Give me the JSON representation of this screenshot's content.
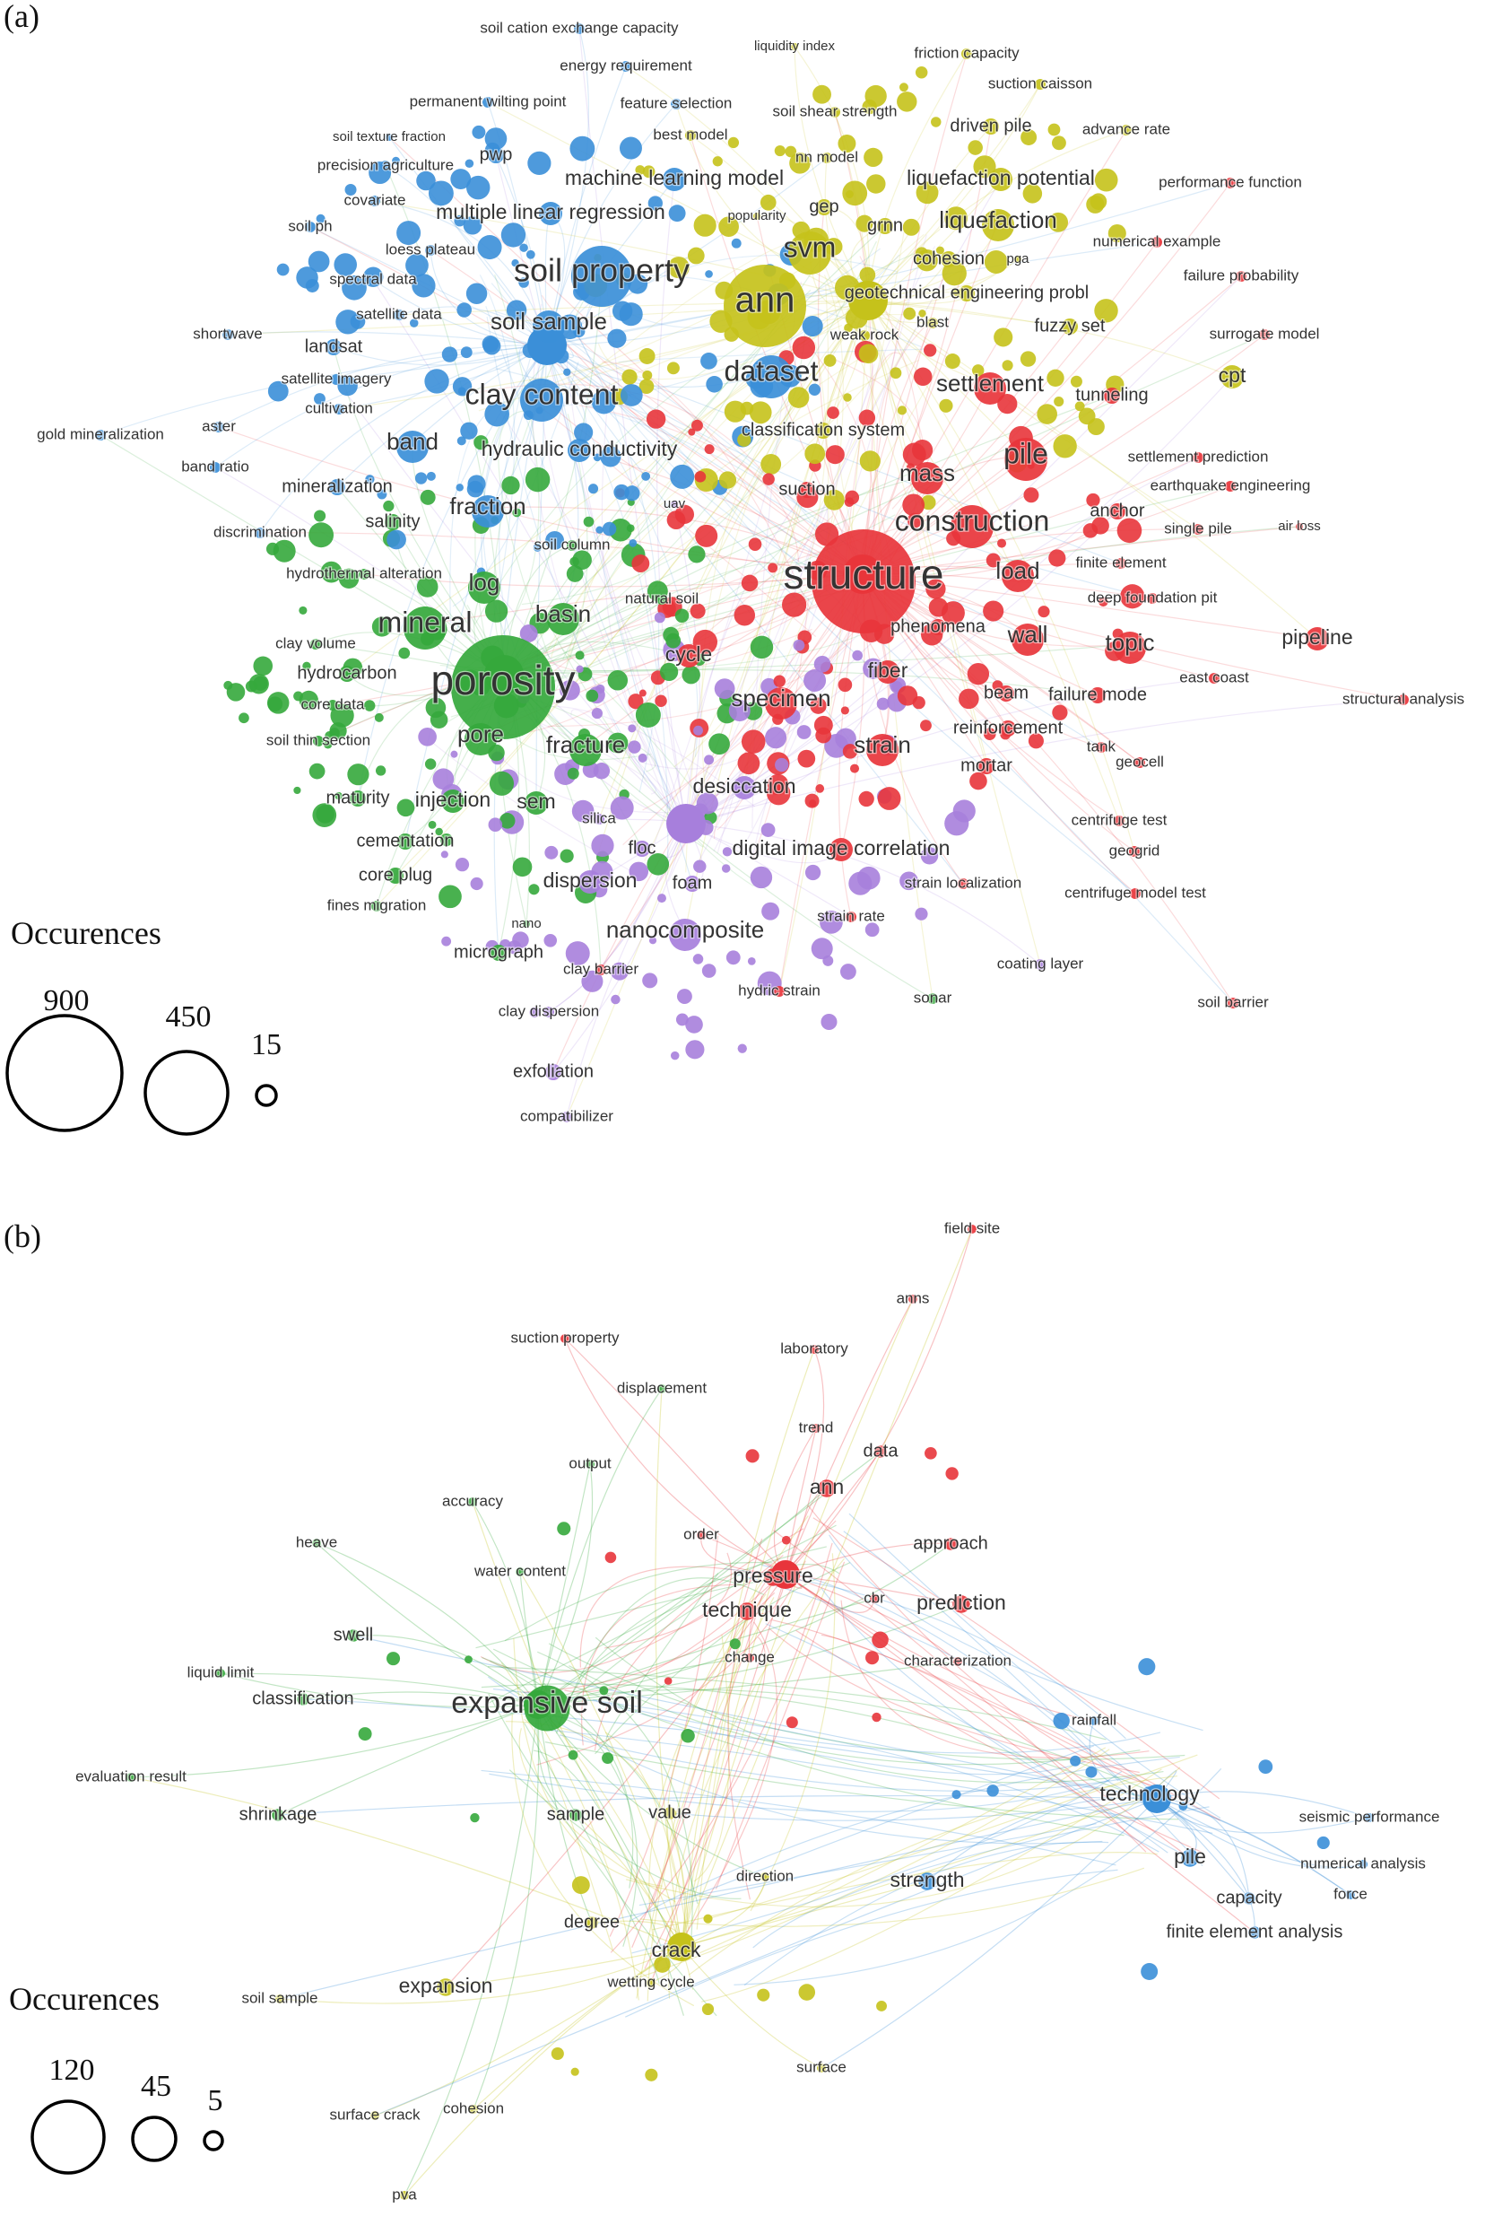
{
  "colors": {
    "red": "#e8353b",
    "green": "#35a83c",
    "blue": "#3b8fd8",
    "yellow": "#c5c21b",
    "purple": "#a77fdc",
    "cyan": "#3bc1d2",
    "orange": "#f0953a",
    "pink": "#e47ad8"
  },
  "panels": [
    {
      "id": "a",
      "letter": "(a)",
      "legend": {
        "title": "Occurences",
        "sizes": [
          "900",
          "450",
          "15"
        ]
      },
      "nodes": [
        {
          "t": "soil cation exchange capacity",
          "c": "blue",
          "s": 2
        },
        {
          "t": "energy requirement",
          "c": "blue",
          "s": 2
        },
        {
          "t": "liquidity index",
          "c": "yellow",
          "s": 1
        },
        {
          "t": "friction capacity",
          "c": "yellow",
          "s": 2
        },
        {
          "t": "suction caisson",
          "c": "yellow",
          "s": 2
        },
        {
          "t": "permanent wilting point",
          "c": "blue",
          "s": 2
        },
        {
          "t": "feature selection",
          "c": "blue",
          "s": 2
        },
        {
          "t": "soil shear strength",
          "c": "yellow",
          "s": 2
        },
        {
          "t": "driven pile",
          "c": "yellow",
          "s": 3
        },
        {
          "t": "advance rate",
          "c": "yellow",
          "s": 2
        },
        {
          "t": "soil texture fraction",
          "c": "blue",
          "s": 1
        },
        {
          "t": "pwp",
          "c": "blue",
          "s": 3
        },
        {
          "t": "best model",
          "c": "yellow",
          "s": 2
        },
        {
          "t": "nn model",
          "c": "yellow",
          "s": 2
        },
        {
          "t": "precision agriculture",
          "c": "blue",
          "s": 2
        },
        {
          "t": "machine learning model",
          "c": "blue",
          "s": 4
        },
        {
          "t": "liquefaction potential",
          "c": "yellow",
          "s": 4
        },
        {
          "t": "performance function",
          "c": "red",
          "s": 2
        },
        {
          "t": "covariate",
          "c": "blue",
          "s": 2
        },
        {
          "t": "multiple linear regression",
          "c": "blue",
          "s": 4
        },
        {
          "t": "popularity",
          "c": "yellow",
          "s": 1
        },
        {
          "t": "gep",
          "c": "yellow",
          "s": 3
        },
        {
          "t": "grnn",
          "c": "yellow",
          "s": 3
        },
        {
          "t": "liquefaction",
          "c": "yellow",
          "s": 5
        },
        {
          "t": "soil ph",
          "c": "blue",
          "s": 2
        },
        {
          "t": "loess plateau",
          "c": "blue",
          "s": 2
        },
        {
          "t": "svm",
          "c": "yellow",
          "s": 6
        },
        {
          "t": "cohesion",
          "c": "yellow",
          "s": 3
        },
        {
          "t": "pga",
          "c": "yellow",
          "s": 1
        },
        {
          "t": "numerical example",
          "c": "red",
          "s": 2
        },
        {
          "t": "soil property",
          "c": "blue",
          "s": 7
        },
        {
          "t": "spectral data",
          "c": "blue",
          "s": 2
        },
        {
          "t": "failure probability",
          "c": "red",
          "s": 2
        },
        {
          "t": "ann",
          "c": "yellow",
          "s": 8
        },
        {
          "t": "geotechnical engineering probl",
          "c": "yellow",
          "s": 3
        },
        {
          "t": "satellite data",
          "c": "blue",
          "s": 2
        },
        {
          "t": "soil sample",
          "c": "blue",
          "s": 5
        },
        {
          "t": "blast",
          "c": "yellow",
          "s": 2
        },
        {
          "t": "fuzzy set",
          "c": "yellow",
          "s": 3
        },
        {
          "t": "shortwave",
          "c": "blue",
          "s": 2
        },
        {
          "t": "weak rock",
          "c": "yellow",
          "s": 2
        },
        {
          "t": "surrogate model",
          "c": "red",
          "s": 2
        },
        {
          "t": "landsat",
          "c": "blue",
          "s": 3
        },
        {
          "t": "dataset",
          "c": "blue",
          "s": 6
        },
        {
          "t": "satellite imagery",
          "c": "blue",
          "s": 2
        },
        {
          "t": "settlement",
          "c": "red",
          "s": 5
        },
        {
          "t": "cpt",
          "c": "yellow",
          "s": 4
        },
        {
          "t": "clay content",
          "c": "blue",
          "s": 6
        },
        {
          "t": "tunneling",
          "c": "red",
          "s": 3
        },
        {
          "t": "cultivation",
          "c": "blue",
          "s": 2
        },
        {
          "t": "aster",
          "c": "blue",
          "s": 2
        },
        {
          "t": "gold mineralization",
          "c": "blue",
          "s": 2
        },
        {
          "t": "classification system",
          "c": "yellow",
          "s": 3
        },
        {
          "t": "band",
          "c": "blue",
          "s": 5
        },
        {
          "t": "hydraulic conductivity",
          "c": "blue",
          "s": 4
        },
        {
          "t": "band ratio",
          "c": "blue",
          "s": 2
        },
        {
          "t": "pile",
          "c": "red",
          "s": 6
        },
        {
          "t": "settlement prediction",
          "c": "red",
          "s": 2
        },
        {
          "t": "mass",
          "c": "red",
          "s": 5
        },
        {
          "t": "mineralization",
          "c": "blue",
          "s": 3
        },
        {
          "t": "earthquake engineering",
          "c": "red",
          "s": 2
        },
        {
          "t": "suction",
          "c": "red",
          "s": 3
        },
        {
          "t": "fraction",
          "c": "blue",
          "s": 5
        },
        {
          "t": "anchor",
          "c": "red",
          "s": 3
        },
        {
          "t": "uav",
          "c": "purple",
          "s": 1
        },
        {
          "t": "construction",
          "c": "red",
          "s": 6
        },
        {
          "t": "salinity",
          "c": "green",
          "s": 3
        },
        {
          "t": "single pile",
          "c": "red",
          "s": 2
        },
        {
          "t": "air loss",
          "c": "red",
          "s": 1
        },
        {
          "t": "discrimination",
          "c": "blue",
          "s": 2
        },
        {
          "t": "soil column",
          "c": "green",
          "s": 2
        },
        {
          "t": "finite element",
          "c": "red",
          "s": 2
        },
        {
          "t": "hydrothermal alteration",
          "c": "green",
          "s": 2
        },
        {
          "t": "structure",
          "c": "red",
          "s": 9
        },
        {
          "t": "load",
          "c": "red",
          "s": 5
        },
        {
          "t": "log",
          "c": "green",
          "s": 5
        },
        {
          "t": "deep foundation pit",
          "c": "red",
          "s": 2
        },
        {
          "t": "natural soil",
          "c": "green",
          "s": 2
        },
        {
          "t": "mineral",
          "c": "green",
          "s": 6
        },
        {
          "t": "basin",
          "c": "green",
          "s": 5
        },
        {
          "t": "phenomena",
          "c": "red",
          "s": 3
        },
        {
          "t": "wall",
          "c": "red",
          "s": 5
        },
        {
          "t": "pipeline",
          "c": "red",
          "s": 4
        },
        {
          "t": "clay volume",
          "c": "green",
          "s": 2
        },
        {
          "t": "topic",
          "c": "red",
          "s": 5
        },
        {
          "t": "hydrocarbon",
          "c": "green",
          "s": 3
        },
        {
          "t": "cycle",
          "c": "red",
          "s": 4
        },
        {
          "t": "porosity",
          "c": "green",
          "s": 9
        },
        {
          "t": "fiber",
          "c": "red",
          "s": 4
        },
        {
          "t": "east coast",
          "c": "red",
          "s": 2
        },
        {
          "t": "beam",
          "c": "red",
          "s": 3
        },
        {
          "t": "failure mode",
          "c": "red",
          "s": 3
        },
        {
          "t": "structural analysis",
          "c": "red",
          "s": 2
        },
        {
          "t": "core data",
          "c": "green",
          "s": 2
        },
        {
          "t": "specimen",
          "c": "red",
          "s": 5
        },
        {
          "t": "soil thin section",
          "c": "green",
          "s": 2
        },
        {
          "t": "pore",
          "c": "green",
          "s": 5
        },
        {
          "t": "fracture",
          "c": "green",
          "s": 5
        },
        {
          "t": "reinforcement",
          "c": "red",
          "s": 3
        },
        {
          "t": "strain",
          "c": "red",
          "s": 5
        },
        {
          "t": "tank",
          "c": "red",
          "s": 2
        },
        {
          "t": "mortar",
          "c": "red",
          "s": 3
        },
        {
          "t": "geocell",
          "c": "red",
          "s": 2
        },
        {
          "t": "desiccation",
          "c": "purple",
          "s": 4
        },
        {
          "t": "maturity",
          "c": "green",
          "s": 3
        },
        {
          "t": "injection",
          "c": "green",
          "s": 4
        },
        {
          "t": "sem",
          "c": "green",
          "s": 4
        },
        {
          "t": "silica",
          "c": "purple",
          "s": 2
        },
        {
          "t": "centrifuge test",
          "c": "red",
          "s": 2
        },
        {
          "t": "cementation",
          "c": "green",
          "s": 3
        },
        {
          "t": "floc",
          "c": "purple",
          "s": 3
        },
        {
          "t": "digital image correlation",
          "c": "red",
          "s": 4
        },
        {
          "t": "geogrid",
          "c": "red",
          "s": 2
        },
        {
          "t": "core plug",
          "c": "green",
          "s": 3
        },
        {
          "t": "dispersion",
          "c": "purple",
          "s": 4
        },
        {
          "t": "foam",
          "c": "purple",
          "s": 3
        },
        {
          "t": "strain localization",
          "c": "red",
          "s": 2
        },
        {
          "t": "centrifuge model test",
          "c": "red",
          "s": 2
        },
        {
          "t": "fines migration",
          "c": "green",
          "s": 2
        },
        {
          "t": "nano",
          "c": "green",
          "s": 1
        },
        {
          "t": "nanocomposite",
          "c": "purple",
          "s": 5
        },
        {
          "t": "strain rate",
          "c": "red",
          "s": 2
        },
        {
          "t": "micrograph",
          "c": "green",
          "s": 3
        },
        {
          "t": "coating layer",
          "c": "purple",
          "s": 2
        },
        {
          "t": "clay barrier",
          "c": "red",
          "s": 2
        },
        {
          "t": "hydric strain",
          "c": "red",
          "s": 2
        },
        {
          "t": "soil barrier",
          "c": "red",
          "s": 2
        },
        {
          "t": "clay dispersion",
          "c": "purple",
          "s": 2
        },
        {
          "t": "sonar",
          "c": "green",
          "s": 2
        },
        {
          "t": "exfoliation",
          "c": "purple",
          "s": 3
        },
        {
          "t": "compatibilizer",
          "c": "purple",
          "s": 2
        }
      ]
    },
    {
      "id": "b",
      "letter": "(b)",
      "legend": {
        "title": "Occurences",
        "sizes": [
          "120",
          "45",
          "5"
        ]
      },
      "nodes": [
        {
          "t": "field site",
          "c": "red",
          "s": 2
        },
        {
          "t": "anns",
          "c": "red",
          "s": 2
        },
        {
          "t": "suction property",
          "c": "red",
          "s": 2
        },
        {
          "t": "laboratory",
          "c": "red",
          "s": 2
        },
        {
          "t": "displacement",
          "c": "green",
          "s": 2
        },
        {
          "t": "trend",
          "c": "red",
          "s": 2
        },
        {
          "t": "data",
          "c": "red",
          "s": 3
        },
        {
          "t": "output",
          "c": "green",
          "s": 2
        },
        {
          "t": "ann",
          "c": "red",
          "s": 4
        },
        {
          "t": "accuracy",
          "c": "green",
          "s": 2
        },
        {
          "t": "order",
          "c": "red",
          "s": 2
        },
        {
          "t": "approach",
          "c": "red",
          "s": 3
        },
        {
          "t": "heave",
          "c": "green",
          "s": 2
        },
        {
          "t": "water content",
          "c": "green",
          "s": 2
        },
        {
          "t": "pressure",
          "c": "red",
          "s": 4
        },
        {
          "t": "cbr",
          "c": "red",
          "s": 2
        },
        {
          "t": "technique",
          "c": "red",
          "s": 4
        },
        {
          "t": "prediction",
          "c": "red",
          "s": 4
        },
        {
          "t": "swell",
          "c": "green",
          "s": 3
        },
        {
          "t": "change",
          "c": "red",
          "s": 2
        },
        {
          "t": "characterization",
          "c": "red",
          "s": 2
        },
        {
          "t": "liquid limit",
          "c": "green",
          "s": 2
        },
        {
          "t": "classification",
          "c": "green",
          "s": 3
        },
        {
          "t": "expansive soil",
          "c": "green",
          "s": 7
        },
        {
          "t": "rainfall",
          "c": "blue",
          "s": 2
        },
        {
          "t": "evaluation result",
          "c": "green",
          "s": 2
        },
        {
          "t": "technology",
          "c": "blue",
          "s": 4
        },
        {
          "t": "shrinkage",
          "c": "green",
          "s": 3
        },
        {
          "t": "sample",
          "c": "green",
          "s": 3
        },
        {
          "t": "value",
          "c": "yellow",
          "s": 3
        },
        {
          "t": "seismic performance",
          "c": "blue",
          "s": 2
        },
        {
          "t": "pile",
          "c": "blue",
          "s": 4
        },
        {
          "t": "numerical analysis",
          "c": "blue",
          "s": 2
        },
        {
          "t": "direction",
          "c": "yellow",
          "s": 2
        },
        {
          "t": "strength",
          "c": "blue",
          "s": 4
        },
        {
          "t": "capacity",
          "c": "blue",
          "s": 3
        },
        {
          "t": "force",
          "c": "blue",
          "s": 2
        },
        {
          "t": "degree",
          "c": "yellow",
          "s": 3
        },
        {
          "t": "crack",
          "c": "yellow",
          "s": 4
        },
        {
          "t": "finite element analysis",
          "c": "blue",
          "s": 3
        },
        {
          "t": "expansion",
          "c": "yellow",
          "s": 4
        },
        {
          "t": "soil sample",
          "c": "yellow",
          "s": 2
        },
        {
          "t": "wetting cycle",
          "c": "yellow",
          "s": 2
        },
        {
          "t": "surface",
          "c": "yellow",
          "s": 2
        },
        {
          "t": "surface crack",
          "c": "yellow",
          "s": 2
        },
        {
          "t": "cohesion",
          "c": "yellow",
          "s": 2
        },
        {
          "t": "pva",
          "c": "yellow",
          "s": 2
        }
      ]
    }
  ]
}
